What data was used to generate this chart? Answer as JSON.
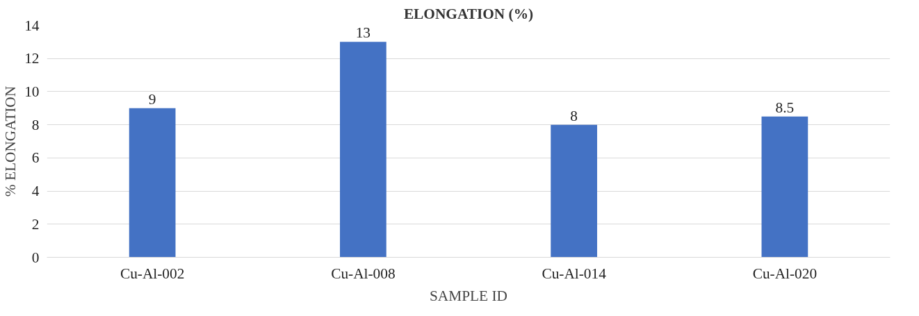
{
  "chart_data": {
    "type": "bar",
    "title": "ELONGATION (%)",
    "xlabel": "SAMPLE ID",
    "ylabel": "% ELONGATION",
    "categories": [
      "Cu-Al-002",
      "Cu-Al-008",
      "Cu-Al-014",
      "Cu-Al-020"
    ],
    "values": [
      9,
      13,
      8,
      8.5
    ],
    "color": "#4472c4",
    "ylim": [
      0,
      14
    ],
    "yticks": [
      0,
      2,
      4,
      6,
      8,
      10,
      12,
      14
    ],
    "grid": "y",
    "data_labels": true
  }
}
